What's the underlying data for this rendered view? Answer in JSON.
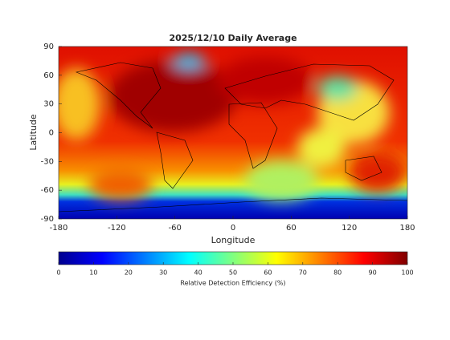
{
  "chart_data": {
    "type": "map",
    "title": "2025/12/10 Daily Average",
    "xlabel": "Longitude",
    "ylabel": "Latitude",
    "xlim": [
      -180,
      180
    ],
    "xticks": [
      -180,
      -120,
      -60,
      0,
      60,
      120,
      180
    ],
    "ylim": [
      -90,
      90
    ],
    "yticks": [
      -90,
      -60,
      -30,
      0,
      30,
      60,
      90
    ],
    "colorbar": {
      "label": "Relative Detection Efficiency (%)",
      "colormap": "jet",
      "lim": [
        0,
        100
      ],
      "ticks": [
        0,
        10,
        20,
        30,
        40,
        50,
        60,
        70,
        80,
        90,
        100
      ]
    }
  }
}
